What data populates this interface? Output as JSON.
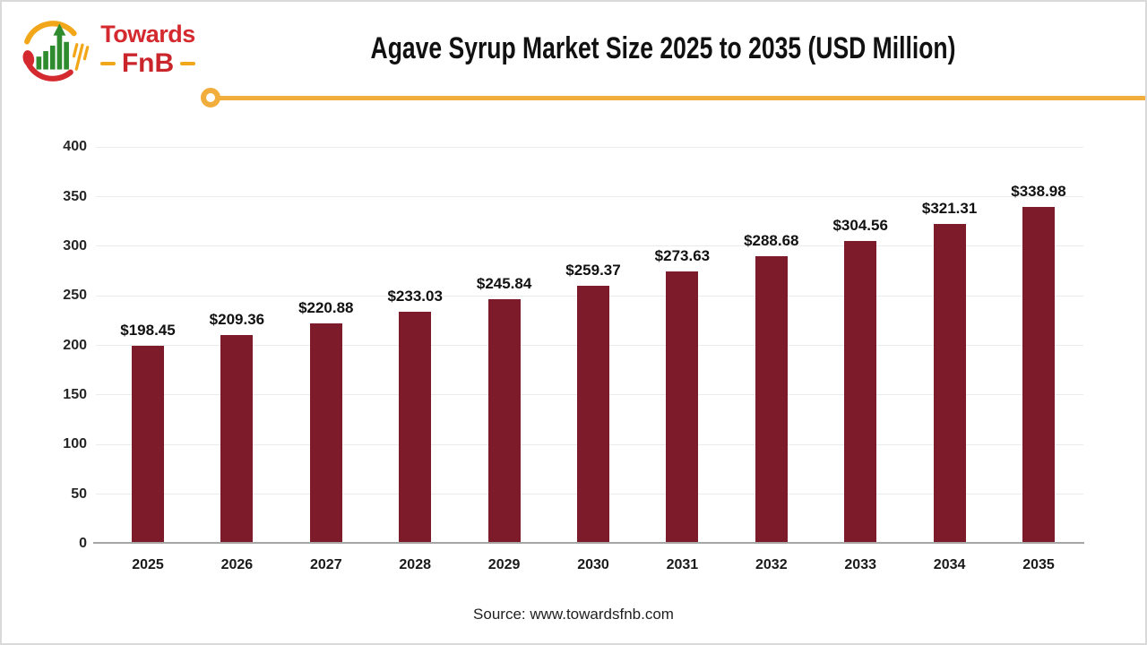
{
  "header": {
    "title": "Agave Syrup Market Size 2025 to 2035 (USD Million)",
    "logo": {
      "brand_top": "Towards",
      "brand_bottom": "FnB"
    }
  },
  "chart_data": {
    "type": "bar",
    "title": "Agave Syrup Market Size 2025 to 2035 (USD Million)",
    "categories": [
      "2025",
      "2026",
      "2027",
      "2028",
      "2029",
      "2030",
      "2031",
      "2032",
      "2033",
      "2034",
      "2035"
    ],
    "values": [
      198.45,
      209.36,
      220.88,
      233.03,
      245.84,
      259.37,
      273.63,
      288.68,
      304.56,
      321.31,
      338.98
    ],
    "data_labels": [
      "$198.45",
      "$209.36",
      "$220.88",
      "$233.03",
      "$245.84",
      "$259.37",
      "$273.63",
      "$288.68",
      "$304.56",
      "$321.31",
      "$338.98"
    ],
    "xlabel": "",
    "ylabel": "",
    "ylim": [
      0,
      420
    ],
    "yticks": [
      0,
      50,
      100,
      150,
      200,
      250,
      300,
      350,
      400
    ],
    "grid": true,
    "legend": false,
    "bar_color": "#7D1B2A",
    "value_prefix": "$",
    "unit": "USD Million"
  },
  "footer": {
    "source": "Source: www.towardsfnb.com"
  },
  "theme": {
    "accent": "#F2AE3C",
    "bar": "#7D1B2A",
    "gridline": "#EBEBEB",
    "axis_line": "#A6A6A6",
    "logo_red": "#D4292E",
    "logo_red2": "#C9252B",
    "logo_yellow": "#F2A71B",
    "logo_green": "#2E8B2E",
    "text": "#111111"
  }
}
